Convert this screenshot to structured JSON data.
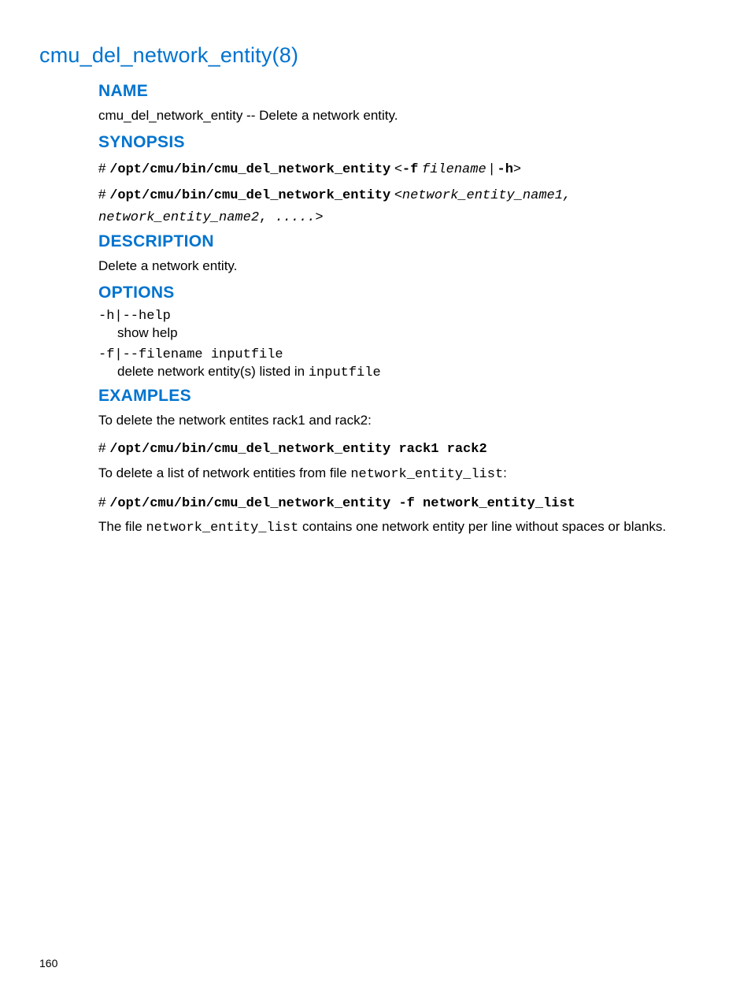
{
  "page": {
    "title": "cmu_del_network_entity(8)",
    "page_number": "160",
    "colors": {
      "heading_blue": "#0073cf",
      "body_text": "#000000",
      "background": "#ffffff"
    }
  },
  "sections": {
    "name": {
      "heading": "NAME",
      "text_prefix": "cmu_del_network_entity",
      "text_rest": " -- Delete a network entity."
    },
    "synopsis": {
      "heading": "SYNOPSIS",
      "line1_prompt": "# ",
      "line1_cmd": "/opt/cmu/bin/cmu_del_network_entity",
      "line1_lt": " <",
      "line1_flag_f": "-f",
      "line1_space": " ",
      "line1_filename": "filename",
      "line1_pipe": " | ",
      "line1_flag_h": "-h",
      "line1_gt": ">",
      "line2_prompt": "# ",
      "line2_cmd": "/opt/cmu/bin/cmu_del_network_entity",
      "line2_lt": " <",
      "line2_args": "network_entity_name1, network_entity_name2",
      "line2_sep": ", ",
      "line2_dots": ".....",
      "line2_gt": ">"
    },
    "description": {
      "heading": "DESCRIPTION",
      "text": "Delete a network entity."
    },
    "options": {
      "heading": "OPTIONS",
      "opt1_term": "-h|--help",
      "opt1_desc": "show help",
      "opt2_term": "-f|--filename inputfile",
      "opt2_desc_prefix": "delete network entity(s) listed in ",
      "opt2_desc_code": "inputfile"
    },
    "examples": {
      "heading": "EXAMPLES",
      "intro1": "To delete the network entites rack1 and rack2:",
      "cmd1_prompt": "# ",
      "cmd1": "/opt/cmu/bin/cmu_del_network_entity rack1 rack2",
      "intro2_prefix": "To delete a list of network entities from file ",
      "intro2_code": "network_entity_list",
      "intro2_suffix": ":",
      "cmd2_prompt": "# ",
      "cmd2": "/opt/cmu/bin/cmu_del_network_entity -f network_entity_list",
      "note_prefix": "The file ",
      "note_code": "network_entity_list",
      "note_suffix": " contains one network entity per line without spaces or blanks."
    }
  }
}
